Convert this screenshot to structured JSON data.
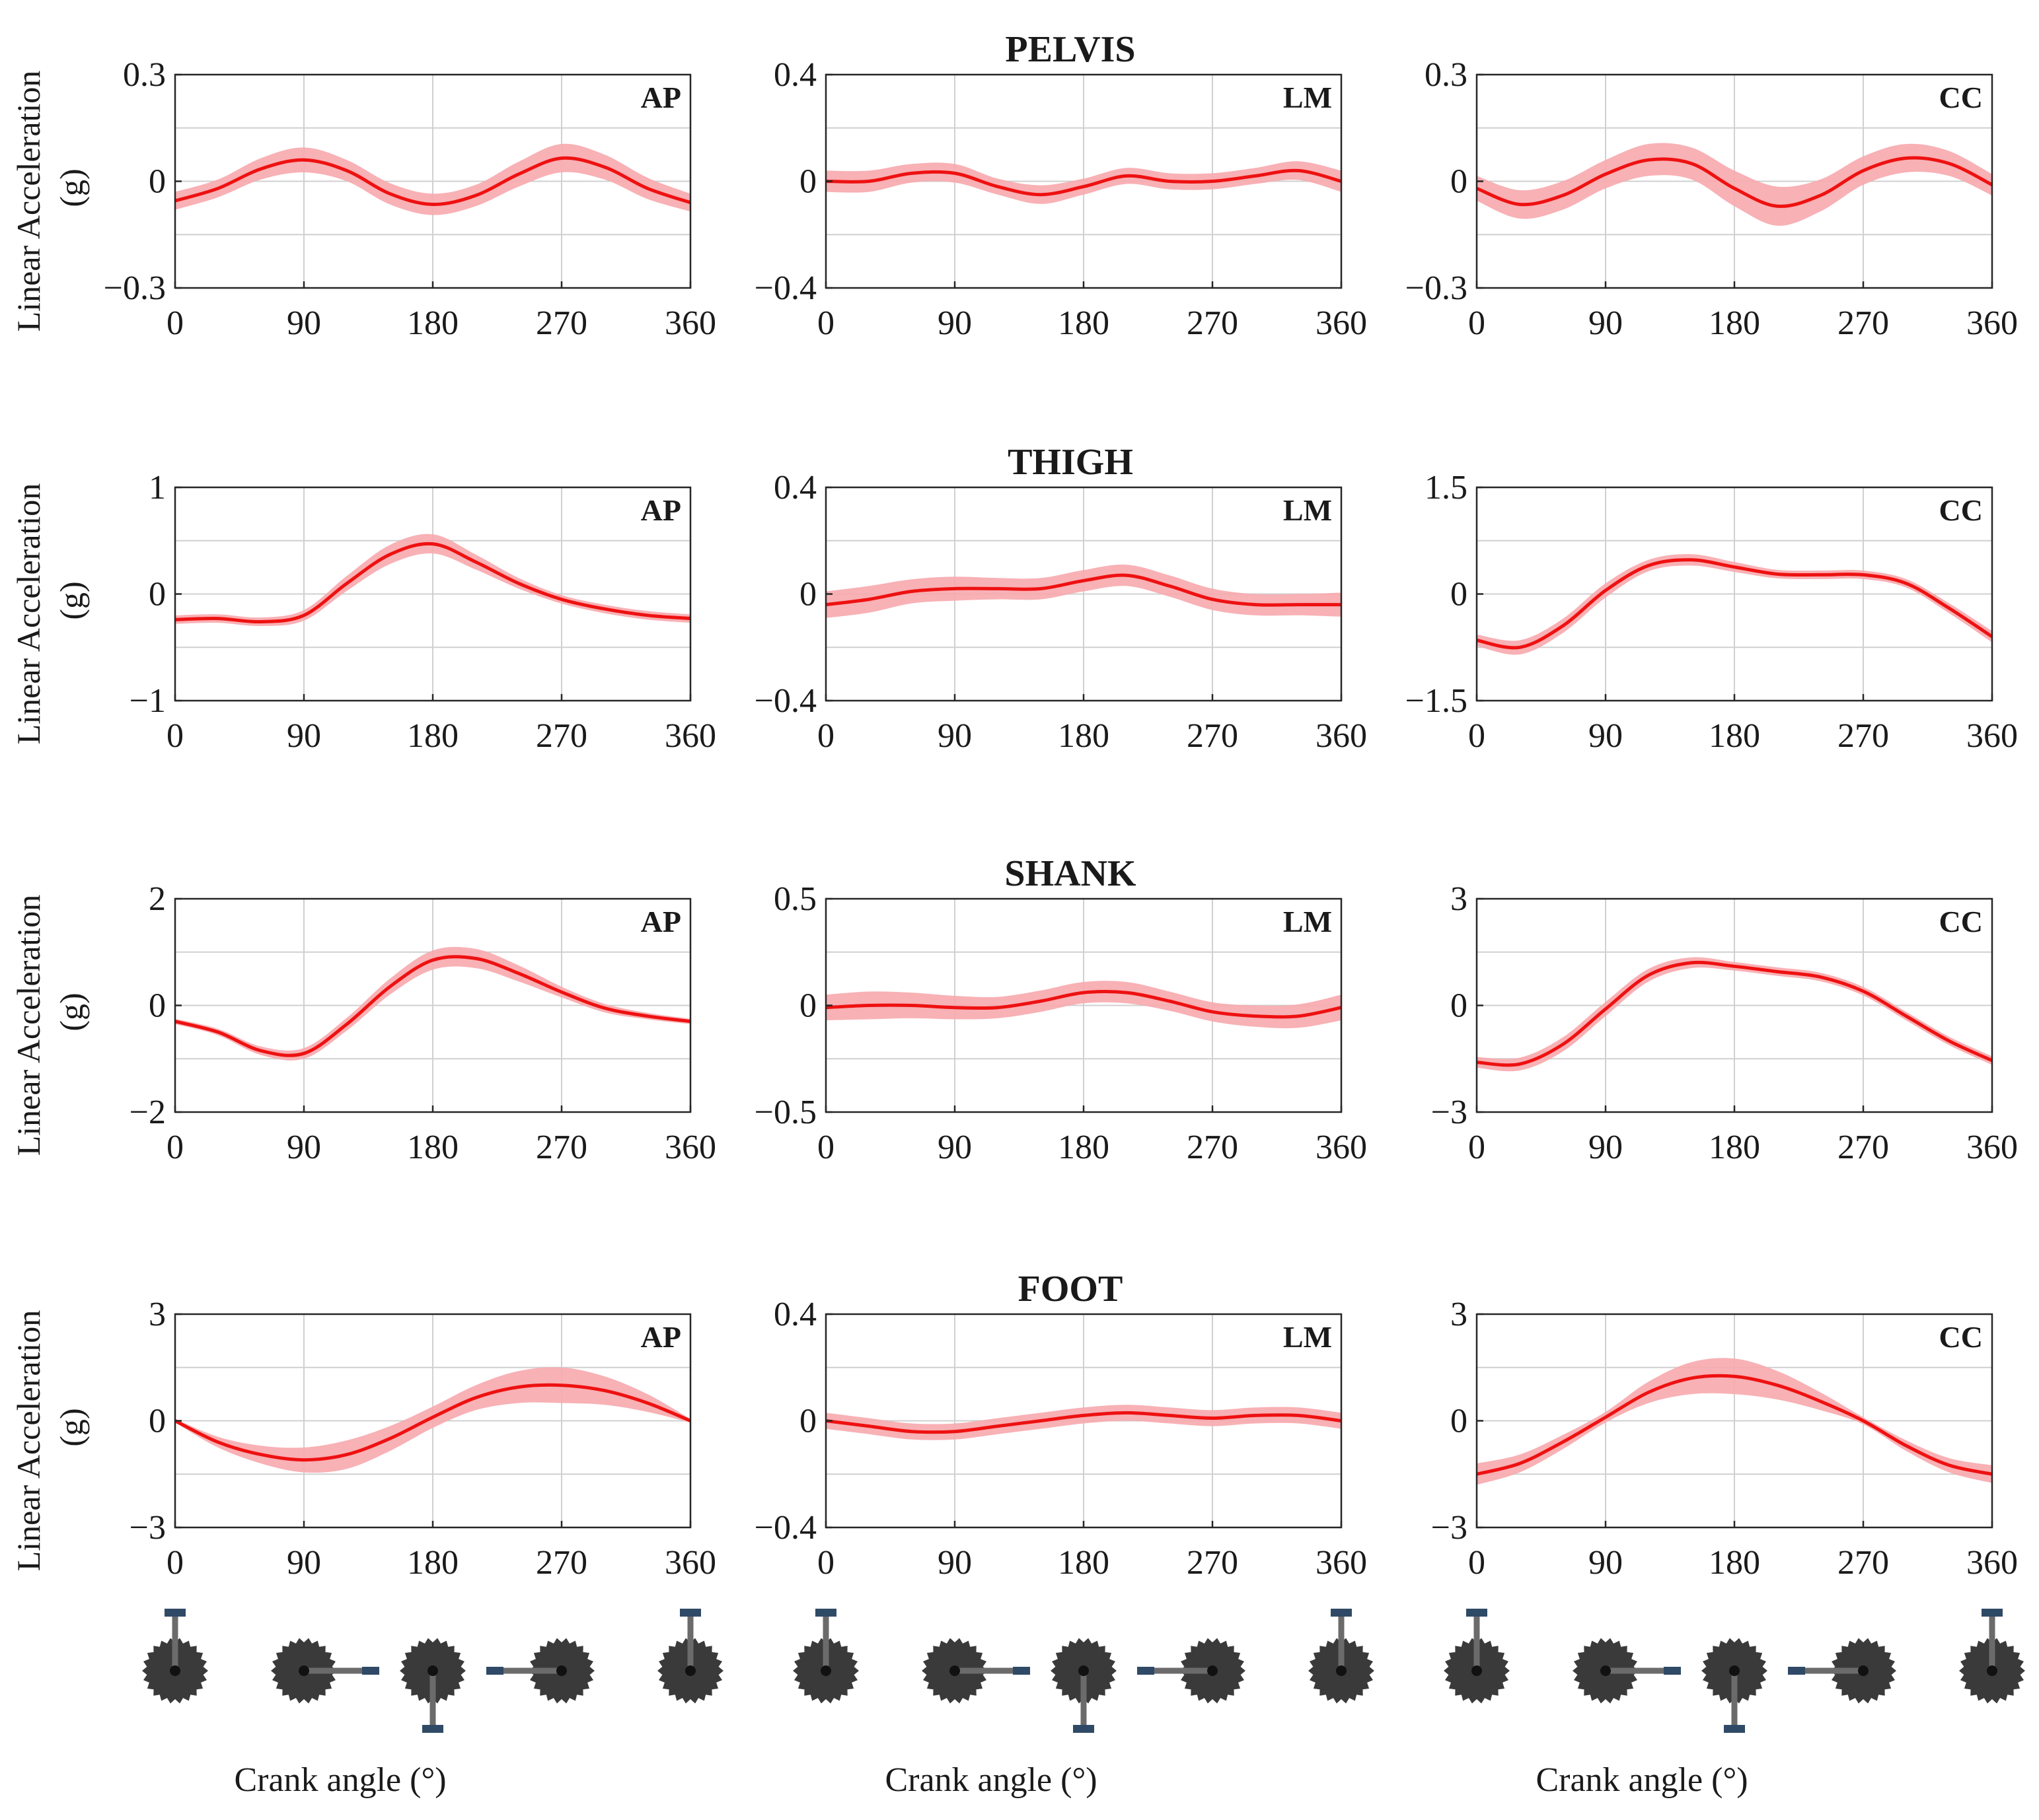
{
  "figure": {
    "ylabel_line1": "Linear Acceleration",
    "ylabel_line2": "(g)",
    "xlabel": "Crank angle (°)",
    "line_color": "#ee1111",
    "band_color": "#f7a8ad",
    "axis_color": "#262626",
    "grid_color": "#d0d0d0",
    "crank_color": "#3a3a3a",
    "pedal_color": "#2f4a66"
  },
  "chart_data": [
    {
      "type": "line",
      "row": "PELVIS",
      "title": "PELVIS",
      "component": "AP",
      "x": [
        0,
        30,
        60,
        90,
        120,
        150,
        180,
        210,
        240,
        270,
        300,
        330,
        360
      ],
      "ylim": [
        -0.3,
        0.3
      ],
      "yticks": [
        -0.3,
        0,
        0.3
      ],
      "yticklabels": [
        "−0.3",
        "0",
        "0.3"
      ],
      "xticks": [
        0,
        90,
        180,
        270,
        360
      ],
      "y": [
        -0.055,
        -0.02,
        0.035,
        0.06,
        0.03,
        -0.035,
        -0.065,
        -0.04,
        0.02,
        0.065,
        0.04,
        -0.02,
        -0.06
      ],
      "sd": [
        0.025,
        0.025,
        0.03,
        0.035,
        0.03,
        0.03,
        0.03,
        0.03,
        0.035,
        0.04,
        0.035,
        0.03,
        0.025
      ]
    },
    {
      "type": "line",
      "row": "PELVIS",
      "component": "LM",
      "x": [
        0,
        30,
        60,
        90,
        120,
        150,
        180,
        210,
        240,
        270,
        300,
        330,
        360
      ],
      "ylim": [
        -0.4,
        0.4
      ],
      "yticks": [
        -0.4,
        0,
        0.4
      ],
      "yticklabels": [
        "−0.4",
        "0",
        "0.4"
      ],
      "xticks": [
        0,
        90,
        180,
        270,
        360
      ],
      "y": [
        0.0,
        0.0,
        0.03,
        0.03,
        -0.02,
        -0.05,
        -0.02,
        0.02,
        0.0,
        0.0,
        0.02,
        0.04,
        0.0
      ],
      "sd": [
        0.04,
        0.04,
        0.035,
        0.035,
        0.03,
        0.035,
        0.03,
        0.03,
        0.03,
        0.03,
        0.03,
        0.035,
        0.04
      ]
    },
    {
      "type": "line",
      "row": "PELVIS",
      "component": "CC",
      "x": [
        0,
        30,
        60,
        90,
        120,
        150,
        180,
        210,
        240,
        270,
        300,
        330,
        360
      ],
      "ylim": [
        -0.3,
        0.3
      ],
      "yticks": [
        -0.3,
        0,
        0.3
      ],
      "yticklabels": [
        "−0.3",
        "0",
        "0.3"
      ],
      "xticks": [
        0,
        90,
        180,
        270,
        360
      ],
      "y": [
        -0.02,
        -0.065,
        -0.04,
        0.02,
        0.06,
        0.05,
        -0.02,
        -0.07,
        -0.04,
        0.03,
        0.065,
        0.05,
        -0.01
      ],
      "sd": [
        0.035,
        0.04,
        0.04,
        0.04,
        0.045,
        0.045,
        0.05,
        0.055,
        0.045,
        0.04,
        0.04,
        0.035,
        0.03
      ]
    },
    {
      "type": "line",
      "row": "THIGH",
      "title": "THIGH",
      "component": "AP",
      "x": [
        0,
        30,
        60,
        90,
        120,
        150,
        180,
        210,
        240,
        270,
        300,
        330,
        360
      ],
      "ylim": [
        -1,
        1
      ],
      "yticks": [
        -1,
        0,
        1
      ],
      "yticklabels": [
        "−1",
        "0",
        "1"
      ],
      "xticks": [
        0,
        90,
        180,
        270,
        360
      ],
      "y": [
        -0.24,
        -0.23,
        -0.26,
        -0.2,
        0.1,
        0.37,
        0.47,
        0.3,
        0.1,
        -0.05,
        -0.14,
        -0.2,
        -0.23
      ],
      "sd": [
        0.04,
        0.04,
        0.04,
        0.05,
        0.07,
        0.09,
        0.09,
        0.07,
        0.05,
        0.04,
        0.04,
        0.04,
        0.04
      ]
    },
    {
      "type": "line",
      "row": "THIGH",
      "component": "LM",
      "x": [
        0,
        30,
        60,
        90,
        120,
        150,
        180,
        210,
        240,
        270,
        300,
        330,
        360
      ],
      "ylim": [
        -0.4,
        0.4
      ],
      "yticks": [
        -0.4,
        0,
        0.4
      ],
      "yticklabels": [
        "−0.4",
        "0",
        "0.4"
      ],
      "xticks": [
        0,
        90,
        180,
        270,
        360
      ],
      "y": [
        -0.04,
        -0.02,
        0.01,
        0.02,
        0.02,
        0.02,
        0.05,
        0.07,
        0.03,
        -0.02,
        -0.04,
        -0.04,
        -0.04
      ],
      "sd": [
        0.05,
        0.05,
        0.045,
        0.045,
        0.04,
        0.04,
        0.04,
        0.04,
        0.04,
        0.04,
        0.04,
        0.04,
        0.045
      ]
    },
    {
      "type": "line",
      "row": "THIGH",
      "component": "CC",
      "x": [
        0,
        30,
        60,
        90,
        120,
        150,
        180,
        210,
        240,
        270,
        300,
        330,
        360
      ],
      "ylim": [
        -1.5,
        1.5
      ],
      "yticks": [
        -1.5,
        0,
        1.5
      ],
      "yticklabels": [
        "−1.5",
        "0",
        "1.5"
      ],
      "xticks": [
        0,
        90,
        180,
        270,
        360
      ],
      "y": [
        -0.65,
        -0.75,
        -0.45,
        0.05,
        0.4,
        0.48,
        0.38,
        0.28,
        0.27,
        0.27,
        0.15,
        -0.2,
        -0.6
      ],
      "sd": [
        0.08,
        0.1,
        0.1,
        0.1,
        0.08,
        0.08,
        0.07,
        0.06,
        0.06,
        0.06,
        0.06,
        0.07,
        0.08
      ]
    },
    {
      "type": "line",
      "row": "SHANK",
      "title": "SHANK",
      "component": "AP",
      "x": [
        0,
        30,
        60,
        90,
        120,
        150,
        180,
        210,
        240,
        270,
        300,
        330,
        360
      ],
      "ylim": [
        -2,
        2
      ],
      "yticks": [
        -2,
        0,
        2
      ],
      "yticklabels": [
        "−2",
        "0",
        "2"
      ],
      "xticks": [
        0,
        90,
        180,
        270,
        360
      ],
      "y": [
        -0.3,
        -0.5,
        -0.85,
        -0.9,
        -0.35,
        0.35,
        0.85,
        0.88,
        0.6,
        0.25,
        -0.05,
        -0.2,
        -0.3
      ],
      "sd": [
        0.05,
        0.06,
        0.08,
        0.1,
        0.12,
        0.15,
        0.18,
        0.18,
        0.15,
        0.1,
        0.08,
        0.06,
        0.05
      ]
    },
    {
      "type": "line",
      "row": "SHANK",
      "component": "LM",
      "x": [
        0,
        30,
        60,
        90,
        120,
        150,
        180,
        210,
        240,
        270,
        300,
        330,
        360
      ],
      "ylim": [
        -0.5,
        0.5
      ],
      "yticks": [
        -0.5,
        0,
        0.5
      ],
      "yticklabels": [
        "−0.5",
        "0",
        "0.5"
      ],
      "xticks": [
        0,
        90,
        180,
        270,
        360
      ],
      "y": [
        -0.01,
        0.0,
        0.0,
        -0.01,
        -0.01,
        0.02,
        0.06,
        0.06,
        0.02,
        -0.03,
        -0.05,
        -0.05,
        -0.01
      ],
      "sd": [
        0.06,
        0.065,
        0.06,
        0.055,
        0.05,
        0.05,
        0.05,
        0.05,
        0.045,
        0.045,
        0.05,
        0.055,
        0.06
      ]
    },
    {
      "type": "line",
      "row": "SHANK",
      "component": "CC",
      "x": [
        0,
        30,
        60,
        90,
        120,
        150,
        180,
        210,
        240,
        270,
        300,
        330,
        360
      ],
      "ylim": [
        -3,
        3
      ],
      "yticks": [
        -3,
        0,
        3
      ],
      "yticklabels": [
        "−3",
        "0",
        "3"
      ],
      "xticks": [
        0,
        90,
        180,
        270,
        360
      ],
      "y": [
        -1.6,
        -1.65,
        -1.1,
        -0.1,
        0.85,
        1.2,
        1.1,
        0.95,
        0.8,
        0.4,
        -0.3,
        -1.0,
        -1.55
      ],
      "sd": [
        0.15,
        0.18,
        0.2,
        0.2,
        0.18,
        0.15,
        0.12,
        0.12,
        0.12,
        0.12,
        0.12,
        0.12,
        0.12
      ]
    },
    {
      "type": "line",
      "row": "FOOT",
      "title": "FOOT",
      "component": "AP",
      "x": [
        0,
        30,
        60,
        90,
        120,
        150,
        180,
        210,
        240,
        270,
        300,
        330,
        360
      ],
      "ylim": [
        -3,
        3
      ],
      "yticks": [
        -3,
        0,
        3
      ],
      "yticklabels": [
        "−3",
        "0",
        "3"
      ],
      "xticks": [
        0,
        90,
        180,
        270,
        360
      ],
      "y": [
        0.0,
        -0.6,
        -0.95,
        -1.1,
        -0.95,
        -0.5,
        0.1,
        0.65,
        0.95,
        1.0,
        0.85,
        0.5,
        0.0
      ],
      "sd": [
        0.05,
        0.15,
        0.25,
        0.35,
        0.4,
        0.35,
        0.3,
        0.35,
        0.45,
        0.5,
        0.4,
        0.25,
        0.05
      ]
    },
    {
      "type": "line",
      "row": "FOOT",
      "component": "LM",
      "x": [
        0,
        30,
        60,
        90,
        120,
        150,
        180,
        210,
        240,
        270,
        300,
        330,
        360
      ],
      "ylim": [
        -0.4,
        0.4
      ],
      "yticks": [
        -0.4,
        0,
        0.4
      ],
      "yticklabels": [
        "−0.4",
        "0",
        "0.4"
      ],
      "xticks": [
        0,
        90,
        180,
        270,
        360
      ],
      "y": [
        0.0,
        -0.02,
        -0.04,
        -0.04,
        -0.02,
        0.0,
        0.02,
        0.03,
        0.02,
        0.01,
        0.02,
        0.02,
        0.0
      ],
      "sd": [
        0.03,
        0.03,
        0.03,
        0.03,
        0.03,
        0.03,
        0.03,
        0.03,
        0.03,
        0.03,
        0.03,
        0.03,
        0.03
      ]
    },
    {
      "type": "line",
      "row": "FOOT",
      "component": "CC",
      "x": [
        0,
        30,
        60,
        90,
        120,
        150,
        180,
        210,
        240,
        270,
        300,
        330,
        360
      ],
      "ylim": [
        -3,
        3
      ],
      "yticks": [
        -3,
        0,
        3
      ],
      "yticklabels": [
        "−3",
        "0",
        "3"
      ],
      "xticks": [
        0,
        90,
        180,
        270,
        360
      ],
      "y": [
        -1.5,
        -1.2,
        -0.6,
        0.1,
        0.8,
        1.2,
        1.25,
        1.0,
        0.55,
        0.0,
        -0.7,
        -1.25,
        -1.5
      ],
      "sd": [
        0.3,
        0.25,
        0.2,
        0.15,
        0.3,
        0.45,
        0.5,
        0.4,
        0.25,
        0.1,
        0.15,
        0.2,
        0.25
      ]
    }
  ]
}
